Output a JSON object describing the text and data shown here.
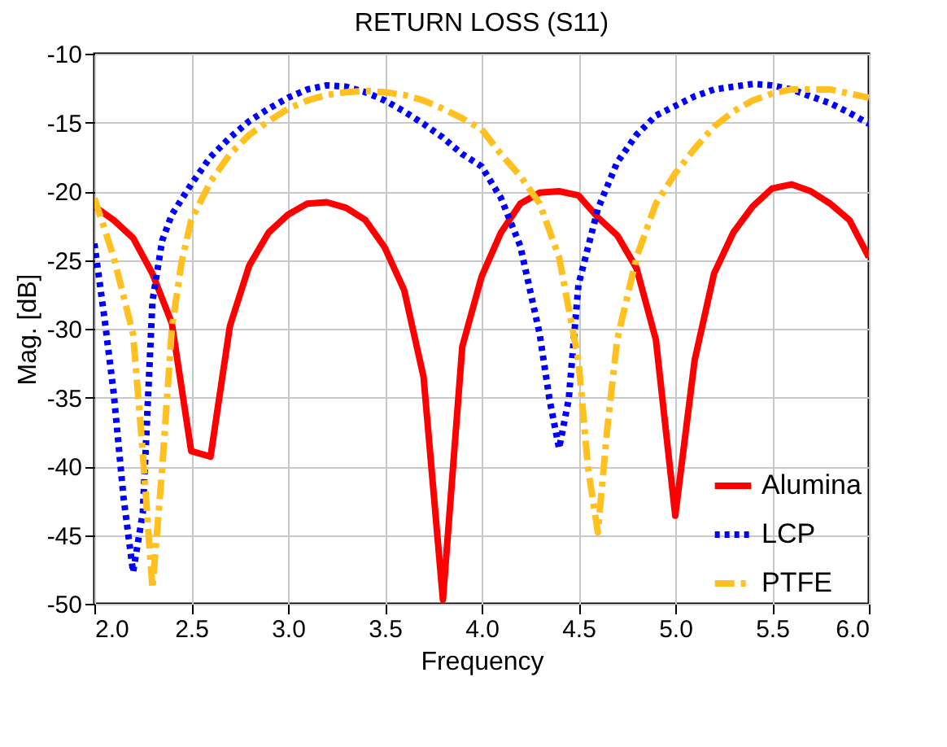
{
  "chart_data": {
    "type": "line",
    "title": "RETURN LOSS (S11)",
    "xlabel": "Frequency",
    "ylabel": "Mag. [dB]",
    "xlim": [
      2,
      6
    ],
    "xticks": [
      {
        "value": 2,
        "label": "2.0"
      },
      {
        "value": 2.5,
        "label": "2.5"
      },
      {
        "value": 3,
        "label": "3.0"
      },
      {
        "value": 3.5,
        "label": "3.5"
      },
      {
        "value": 4,
        "label": "4.0"
      },
      {
        "value": 4.5,
        "label": "4.5"
      },
      {
        "value": 5,
        "label": "5.0"
      },
      {
        "value": 5.5,
        "label": "5.5"
      },
      {
        "value": 6,
        "label": "6.0"
      }
    ],
    "ylim": [
      -50,
      -10
    ],
    "yticks": [
      -50,
      -45,
      -40,
      -35,
      -30,
      -25,
      -20,
      -15,
      -10
    ],
    "grid": true,
    "legend": "bottom right",
    "marker": "none",
    "series": [
      {
        "name": "Alumina",
        "color": "#ff0000",
        "line_style": "solid",
        "x": [
          2.0,
          2.1,
          2.2,
          2.3,
          2.4,
          2.5,
          2.6,
          2.7,
          2.8,
          2.9,
          3.0,
          3.1,
          3.2,
          3.3,
          3.4,
          3.5,
          3.6,
          3.7,
          3.8,
          3.9,
          4.0,
          4.1,
          4.2,
          4.3,
          4.4,
          4.5,
          4.6,
          4.7,
          4.8,
          4.9,
          5.0,
          5.1,
          5.2,
          5.3,
          5.4,
          5.5,
          5.6,
          5.7,
          5.8,
          5.9,
          6.0
        ],
        "values": [
          -21.1,
          -22.1,
          -23.4,
          -26.0,
          -29.6,
          -38.9,
          -39.3,
          -29.8,
          -25.4,
          -23.0,
          -21.7,
          -20.9,
          -20.8,
          -21.2,
          -22.1,
          -24.1,
          -27.2,
          -33.5,
          -49.7,
          -31.3,
          -26.2,
          -23.0,
          -20.9,
          -20.1,
          -20.0,
          -20.3,
          -21.9,
          -23.2,
          -25.6,
          -30.8,
          -43.6,
          -32.3,
          -26.0,
          -23.0,
          -21.1,
          -19.8,
          -19.5,
          -20.0,
          -20.9,
          -22.1,
          -24.8
        ]
      },
      {
        "name": "LCP",
        "color": "#0000ff",
        "line_style": "dotted",
        "x": [
          2.0,
          2.05,
          2.1,
          2.15,
          2.2,
          2.25,
          2.3,
          2.35,
          2.4,
          2.5,
          2.6,
          2.7,
          2.8,
          2.9,
          3.0,
          3.1,
          3.2,
          3.3,
          3.4,
          3.5,
          3.6,
          3.7,
          3.8,
          3.9,
          4.0,
          4.1,
          4.2,
          4.3,
          4.35,
          4.4,
          4.45,
          4.5,
          4.6,
          4.7,
          4.8,
          4.9,
          5.0,
          5.1,
          5.2,
          5.3,
          5.4,
          5.5,
          5.6,
          5.7,
          5.8,
          5.9,
          6.0
        ],
        "values": [
          -23.8,
          -29.0,
          -34.7,
          -42.2,
          -47.7,
          -43.4,
          -28.0,
          -23.6,
          -21.7,
          -19.5,
          -17.5,
          -16.1,
          -14.9,
          -14.0,
          -13.2,
          -12.6,
          -12.3,
          -12.4,
          -12.8,
          -13.4,
          -14.2,
          -15.1,
          -16.1,
          -17.3,
          -18.2,
          -20.5,
          -24.0,
          -30.4,
          -35.1,
          -38.7,
          -35.1,
          -26.8,
          -21.3,
          -17.9,
          -15.9,
          -14.5,
          -13.8,
          -13.1,
          -12.6,
          -12.4,
          -12.2,
          -12.3,
          -12.6,
          -13.1,
          -13.6,
          -14.3,
          -15.1
        ]
      },
      {
        "name": "PTFE",
        "color": "#ffc020",
        "line_style": "dashed",
        "x": [
          2.0,
          2.1,
          2.2,
          2.25,
          2.3,
          2.35,
          2.4,
          2.45,
          2.5,
          2.6,
          2.7,
          2.8,
          2.9,
          3.0,
          3.1,
          3.2,
          3.3,
          3.4,
          3.5,
          3.6,
          3.7,
          3.8,
          3.9,
          4.0,
          4.1,
          4.2,
          4.3,
          4.4,
          4.5,
          4.55,
          4.6,
          4.65,
          4.7,
          4.8,
          4.9,
          5.0,
          5.1,
          5.2,
          5.3,
          5.4,
          5.5,
          5.6,
          5.7,
          5.8,
          5.9,
          6.0
        ],
        "values": [
          -20.5,
          -24.8,
          -30.4,
          -39.0,
          -48.9,
          -40.2,
          -30.0,
          -25.2,
          -22.1,
          -19.3,
          -17.3,
          -15.9,
          -14.9,
          -14.0,
          -13.4,
          -13.0,
          -12.8,
          -12.7,
          -12.8,
          -13.0,
          -13.4,
          -14.0,
          -14.7,
          -15.5,
          -17.3,
          -18.9,
          -20.9,
          -24.8,
          -32.3,
          -40.2,
          -44.8,
          -37.1,
          -30.8,
          -24.8,
          -20.9,
          -18.7,
          -16.9,
          -15.3,
          -14.2,
          -13.4,
          -12.9,
          -12.6,
          -12.6,
          -12.6,
          -12.9,
          -13.2
        ]
      }
    ]
  }
}
